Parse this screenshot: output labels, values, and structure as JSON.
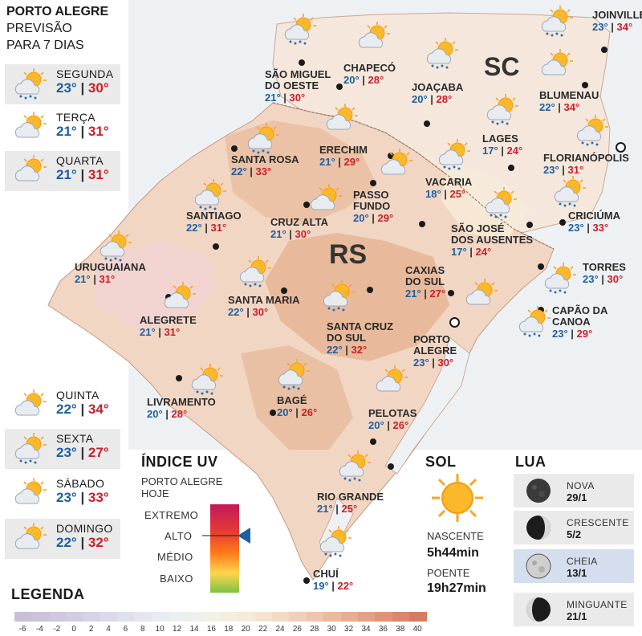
{
  "header": {
    "line1": "PORTO ALEGRE",
    "line2": "PREVISÃO",
    "line3": "PARA 7 DIAS"
  },
  "forecast": [
    {
      "day": "SEGUNDA",
      "min": "23°",
      "max": "30°",
      "icon": "sun-cloud-rain-icon",
      "shaded": true
    },
    {
      "day": "TERÇA",
      "min": "21°",
      "max": "31°",
      "icon": "sun-cloud-icon",
      "shaded": false
    },
    {
      "day": "QUARTA",
      "min": "21°",
      "max": "31°",
      "icon": "sun-cloud-icon",
      "shaded": true
    },
    {
      "day": "QUINTA",
      "min": "22°",
      "max": "34°",
      "icon": "sun-cloud-icon",
      "shaded": false
    },
    {
      "day": "SEXTA",
      "min": "23°",
      "max": "27°",
      "icon": "sun-cloud-rain-icon",
      "shaded": true
    },
    {
      "day": "SÁBADO",
      "min": "23°",
      "max": "33°",
      "icon": "sun-cloud-icon",
      "shaded": false
    },
    {
      "day": "DOMINGO",
      "min": "22°",
      "max": "32°",
      "icon": "sun-cloud-icon",
      "shaded": true
    }
  ],
  "regions": {
    "rs": "RS",
    "sc": "SC"
  },
  "cities": [
    {
      "name": "SÃO MIGUEL\nDO OESTE",
      "min": "21°",
      "max": "30°"
    },
    {
      "name": "CHAPECÓ",
      "min": "20°",
      "max": "28°"
    },
    {
      "name": "JOAÇABA",
      "min": "20°",
      "max": "28°"
    },
    {
      "name": "JOINVILLE",
      "min": "23°",
      "max": "34°"
    },
    {
      "name": "BLUMENAU",
      "min": "22°",
      "max": "34°"
    },
    {
      "name": "LAGES",
      "min": "17°",
      "max": "24°"
    },
    {
      "name": "FLORIANÓPOLIS",
      "min": "23°",
      "max": "31°"
    },
    {
      "name": "ERECHIM",
      "min": "21°",
      "max": "29°"
    },
    {
      "name": "SANTA ROSA",
      "min": "22°",
      "max": "33°"
    },
    {
      "name": "VACARIA",
      "min": "18°",
      "max": "25°"
    },
    {
      "name": "PASSO\nFUNDO",
      "min": "20°",
      "max": "29°"
    },
    {
      "name": "CRICIÚMA",
      "min": "23°",
      "max": "33°"
    },
    {
      "name": "SANTIAGO",
      "min": "22°",
      "max": "31°"
    },
    {
      "name": "CRUZ ALTA",
      "min": "21°",
      "max": "30°"
    },
    {
      "name": "SÃO JOSÉ\nDOS AUSENTES",
      "min": "17°",
      "max": "24°"
    },
    {
      "name": "URUGUAIANA",
      "min": "21°",
      "max": "31°"
    },
    {
      "name": "CAXIAS\nDO SUL",
      "min": "21°",
      "max": "27°"
    },
    {
      "name": "TORRES",
      "min": "23°",
      "max": "30°"
    },
    {
      "name": "SANTA MARIA",
      "min": "22°",
      "max": "30°"
    },
    {
      "name": "ALEGRETE",
      "min": "21°",
      "max": "31°"
    },
    {
      "name": "CAPÃO DA\nCANOA",
      "min": "23°",
      "max": "29°"
    },
    {
      "name": "SANTA CRUZ\nDO SUL",
      "min": "22°",
      "max": "32°"
    },
    {
      "name": "PORTO\nALEGRE",
      "min": "23°",
      "max": "30°"
    },
    {
      "name": "LIVRAMENTO",
      "min": "20°",
      "max": "28°"
    },
    {
      "name": "BAGÉ",
      "min": "20°",
      "max": "26°"
    },
    {
      "name": "PELOTAS",
      "min": "20°",
      "max": "26°"
    },
    {
      "name": "RIO GRANDE",
      "min": "21°",
      "max": "25°"
    },
    {
      "name": "CHUÍ",
      "min": "19°",
      "max": "22°"
    }
  ],
  "uv": {
    "title": "ÍNDICE UV",
    "sub1": "PORTO ALEGRE",
    "sub2": "HOJE",
    "levels": [
      "EXTREMO",
      "ALTO",
      "MÉDIO",
      "BAIXO"
    ],
    "current": "ALTO",
    "pointer_color": "#1d5fa0"
  },
  "sun": {
    "title": "SOL",
    "rise_label": "NASCENTE",
    "rise": "5h44min",
    "set_label": "POENTE",
    "set": "19h27min"
  },
  "moon": {
    "title": "LUA",
    "phases": [
      {
        "name": "NOVA",
        "date": "29/1",
        "icon": "new-moon-icon"
      },
      {
        "name": "CRESCENTE",
        "date": "5/2",
        "icon": "waxing-moon-icon"
      },
      {
        "name": "CHEIA",
        "date": "13/1",
        "icon": "full-moon-icon",
        "highlight": true
      },
      {
        "name": "MINGUANTE",
        "date": "21/1",
        "icon": "waning-moon-icon"
      }
    ]
  },
  "legend": {
    "title": "LEGENDA",
    "ticks": [
      "-6",
      "-4",
      "-2",
      "0",
      "2",
      "4",
      "6",
      "8",
      "10",
      "12",
      "14",
      "16",
      "18",
      "20",
      "22",
      "24",
      "26",
      "28",
      "30",
      "32",
      "34",
      "36",
      "38",
      "40"
    ]
  },
  "colors": {
    "min_temp": "#1d5fa0",
    "max_temp": "#c8202a",
    "land": "#f2d9c8",
    "land_warm": "#e6b593",
    "sea": "#e9eef2"
  }
}
